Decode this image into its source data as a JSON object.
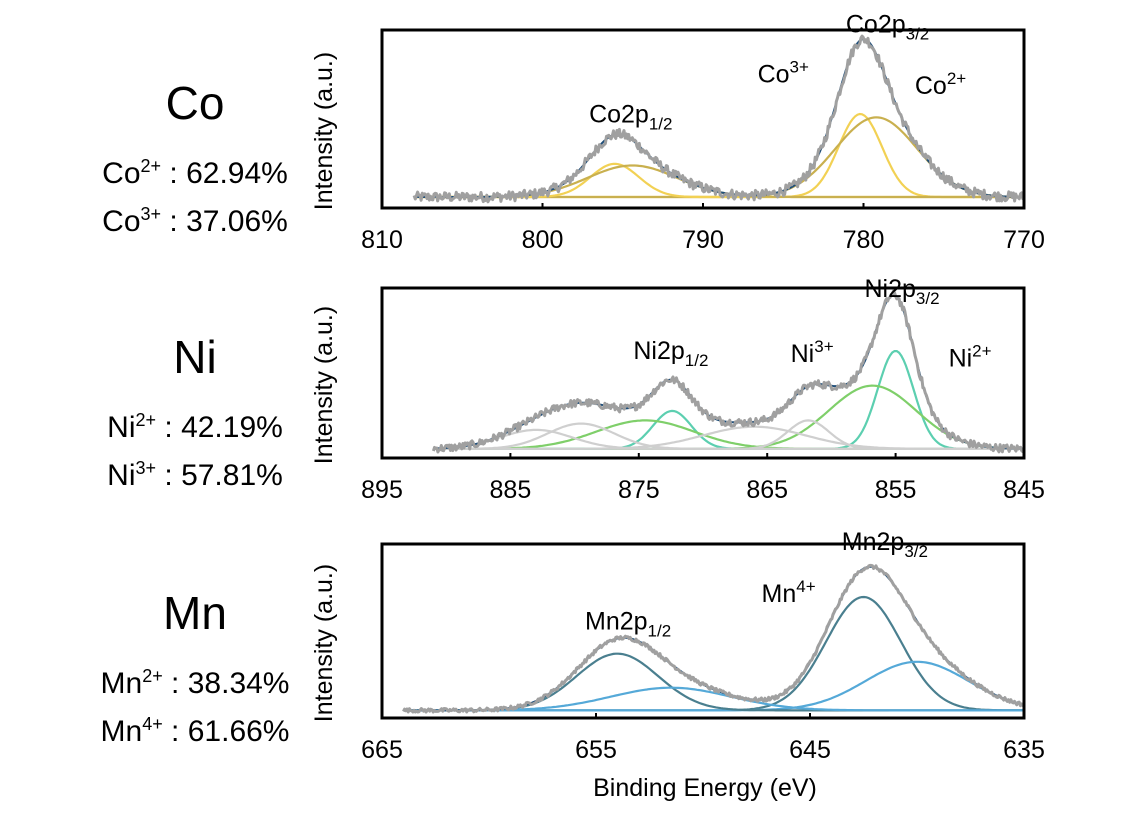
{
  "chart_data": [
    {
      "type": "line",
      "element": "Co",
      "composition": [
        {
          "ion": "Co",
          "charge": "2+",
          "value": "62.94%"
        },
        {
          "ion": "Co",
          "charge": "3+",
          "value": "37.06%"
        }
      ],
      "ylabel": "Intensity (a.u.)",
      "xlabel": "",
      "xlim": [
        810,
        770
      ],
      "xticks": [
        "810",
        "800",
        "790",
        "780",
        "770"
      ],
      "x_data_range": [
        808,
        770
      ],
      "baseline": 0.03,
      "noise": 0.03,
      "components": [
        {
          "name": "Co3+ 2p3/2",
          "center": 780.2,
          "sigma": 1.35,
          "height": 0.5,
          "color": "#f2d154"
        },
        {
          "name": "Co2+ 2p3/2",
          "center": 779.2,
          "sigma": 2.55,
          "height": 0.48,
          "color": "#c9b04f"
        },
        {
          "name": "Co3+ 2p1/2",
          "center": 795.5,
          "sigma": 1.5,
          "height": 0.2,
          "color": "#f2d154"
        },
        {
          "name": "Co2+ 2p1/2",
          "center": 794.4,
          "sigma": 2.8,
          "height": 0.19,
          "color": "#c9b04f"
        }
      ],
      "annotations": [
        {
          "base": "Co2p",
          "sub": "3/2",
          "sup": "",
          "x": 778.5,
          "y": 1.02
        },
        {
          "base": "Co",
          "sub": "",
          "sup": "3+",
          "x": 785,
          "y": 0.72
        },
        {
          "base": "Co",
          "sub": "",
          "sup": "2+",
          "x": 775.2,
          "y": 0.65
        },
        {
          "base": "Co2p",
          "sub": "1/2",
          "sup": "",
          "x": 794.5,
          "y": 0.48
        }
      ]
    },
    {
      "type": "line",
      "element": "Ni",
      "composition": [
        {
          "ion": "Ni",
          "charge": "2+",
          "value": "42.19%"
        },
        {
          "ion": "Ni",
          "charge": "3+",
          "value": "57.81%"
        }
      ],
      "ylabel": "Intensity (a.u.)",
      "xlabel": "",
      "xlim": [
        895,
        845
      ],
      "xticks": [
        "895",
        "885",
        "875",
        "865",
        "855",
        "845"
      ],
      "x_data_range": [
        891,
        845
      ],
      "baseline": 0.02,
      "noise": 0.025,
      "components": [
        {
          "name": "Ni2+ 2p3/2",
          "center": 855.0,
          "sigma": 1.4,
          "height": 0.62,
          "color": "#5ccfb0"
        },
        {
          "name": "Ni3+ 2p3/2",
          "center": 856.8,
          "sigma": 3.4,
          "height": 0.4,
          "color": "#7fcf6a"
        },
        {
          "name": "Ni2+ 2p1/2",
          "center": 872.4,
          "sigma": 1.5,
          "height": 0.24,
          "color": "#5ccfb0"
        },
        {
          "name": "Ni3+ 2p1/2",
          "center": 874.5,
          "sigma": 3.8,
          "height": 0.18,
          "color": "#7fcf6a"
        },
        {
          "name": "satellite 1",
          "center": 861.8,
          "sigma": 1.6,
          "height": 0.18,
          "color": "#cfcfcf"
        },
        {
          "name": "satellite 2",
          "center": 866.0,
          "sigma": 4.0,
          "height": 0.14,
          "color": "#cfcfcf"
        },
        {
          "name": "satellite 3",
          "center": 879.5,
          "sigma": 2.6,
          "height": 0.16,
          "color": "#cfcfcf"
        },
        {
          "name": "satellite 4",
          "center": 883.0,
          "sigma": 2.8,
          "height": 0.12,
          "color": "#cfcfcf"
        }
      ],
      "annotations": [
        {
          "base": "Ni2p",
          "sub": "3/2",
          "sup": "",
          "x": 854.5,
          "y": 0.98
        },
        {
          "base": "Ni",
          "sub": "",
          "sup": "3+",
          "x": 861.5,
          "y": 0.57
        },
        {
          "base": "Ni",
          "sub": "",
          "sup": "2+",
          "x": 849.2,
          "y": 0.54
        },
        {
          "base": "Ni2p",
          "sub": "1/2",
          "sup": "",
          "x": 872.5,
          "y": 0.59
        }
      ]
    },
    {
      "type": "line",
      "element": "Mn",
      "composition": [
        {
          "ion": "Mn",
          "charge": "2+",
          "value": "38.34%"
        },
        {
          "ion": "Mn",
          "charge": "4+",
          "value": "61.66%"
        }
      ],
      "ylabel": "Intensity (a.u.)",
      "xlabel": "Binding Energy (eV)",
      "xlim": [
        665,
        635
      ],
      "xticks": [
        "665",
        "655",
        "645",
        "635"
      ],
      "x_data_range": [
        664,
        635
      ],
      "baseline": 0.01,
      "noise": 0.012,
      "components": [
        {
          "name": "Mn4+ 2p3/2",
          "center": 642.5,
          "sigma": 1.75,
          "height": 0.7,
          "color": "#4a7f8f"
        },
        {
          "name": "Mn2+ 2p3/2",
          "center": 640.0,
          "sigma": 2.4,
          "height": 0.3,
          "color": "#55a9d8"
        },
        {
          "name": "Mn4+ 2p1/2",
          "center": 654.0,
          "sigma": 1.9,
          "height": 0.35,
          "color": "#4a7f8f"
        },
        {
          "name": "Mn2+ 2p1/2",
          "center": 651.5,
          "sigma": 2.8,
          "height": 0.14,
          "color": "#55a9d8"
        }
      ],
      "annotations": [
        {
          "base": "Mn2p",
          "sub": "3/2",
          "sup": "",
          "x": 641.5,
          "y": 1.0
        },
        {
          "base": "Mn",
          "sub": "",
          "sup": "4+",
          "x": 646.0,
          "y": 0.68
        },
        {
          "base": "Mn2p",
          "sub": "1/2",
          "sup": "",
          "x": 653.5,
          "y": 0.51
        }
      ]
    }
  ],
  "style": {
    "measured_color": "#a0a0a0",
    "envelope_color": "#1f4e79"
  }
}
